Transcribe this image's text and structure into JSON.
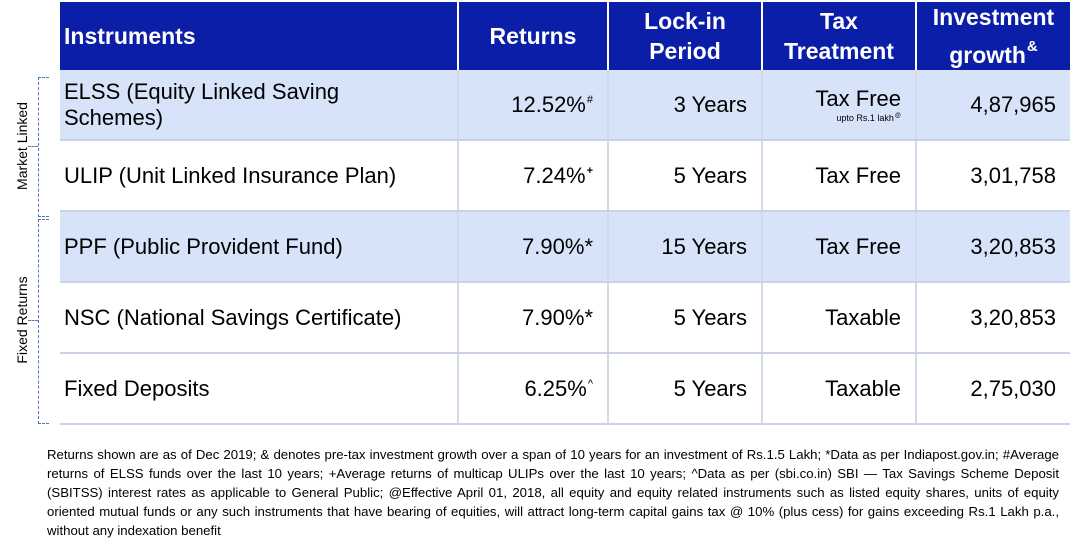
{
  "header": {
    "instruments": "Instruments",
    "returns": "Returns",
    "lockin": "Lock-in Period",
    "tax": "Tax Treatment",
    "growth": "Investment growth",
    "growth_sup": "&"
  },
  "groups": {
    "market_linked": "Market Linked",
    "fixed_returns": "Fixed Returns"
  },
  "rows": [
    {
      "instrument": "ELSS (Equity Linked Saving Schemes)",
      "returns": "12.52%",
      "returns_mark": "#",
      "lockin": "3 Years",
      "tax": "Tax Free",
      "tax_note": "upto Rs.1 lakh",
      "tax_note_mark": "@",
      "growth": "4,87,965"
    },
    {
      "instrument": "ULIP (Unit Linked Insurance Plan)",
      "returns": "7.24%",
      "returns_mark": "+",
      "lockin": "5 Years",
      "tax": "Tax Free",
      "growth": "3,01,758"
    },
    {
      "instrument": "PPF (Public Provident Fund)",
      "returns": "7.90%",
      "returns_mark": "*",
      "lockin": "15 Years",
      "tax": "Tax Free",
      "growth": "3,20,853"
    },
    {
      "instrument": "NSC (National Savings Certificate)",
      "returns": "7.90%",
      "returns_mark": "*",
      "lockin": "5 Years",
      "tax": "Taxable",
      "growth": "3,20,853"
    },
    {
      "instrument": "Fixed Deposits",
      "returns": "6.25%",
      "returns_mark": "^",
      "lockin": "5 Years",
      "tax": "Taxable",
      "growth": "2,75,030"
    }
  ],
  "footnote": "Returns shown are as of Dec 2019; & denotes pre-tax investment growth over a span of 10 years for an investment of Rs.1.5 Lakh; *Data as per Indiapost.gov.in; #Average returns of ELSS funds over the last 10 years; +Average returns of multicap ULIPs over the last 10 years; ^Data as per (sbi.co.in) SBI — Tax Savings Scheme Deposit (SBITSS) interest rates as applicable to General Public; @Effective April 01, 2018, all equity and equity related instruments such as listed equity shares, units of equity oriented mutual funds or any such instruments that have bearing of equities, will attract long-term capital gains tax @ 10% (plus cess) for gains exceeding Rs.1 Lakh p.a., without any indexation benefit",
  "colors": {
    "header_bg": "#0a1ea8",
    "shaded_row": "#d6e3f8",
    "brace": "#4a7ab8"
  }
}
